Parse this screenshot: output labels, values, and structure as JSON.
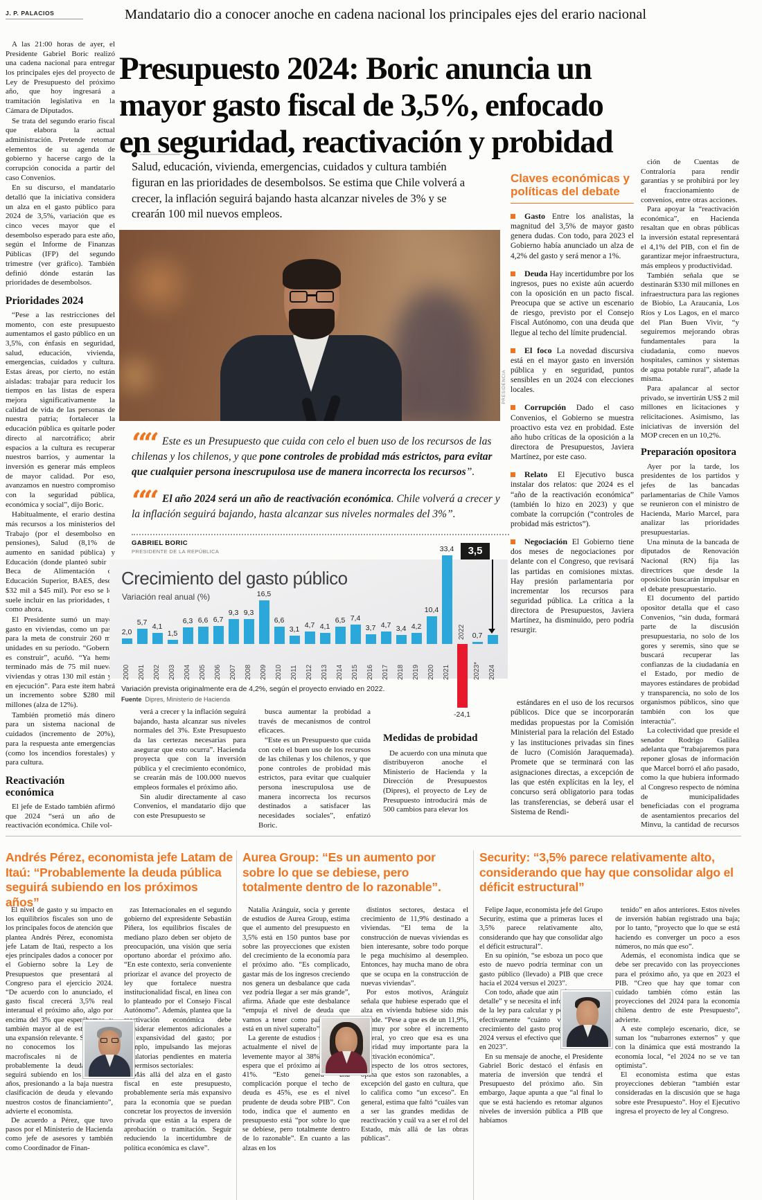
{
  "colors": {
    "accent": "#ee7420",
    "bar_blue": "#2ba7d9",
    "bar_red": "#e8182d",
    "badge_bg": "#1a1a18"
  },
  "masthead": {
    "byline": "J. P. PALACIOS"
  },
  "kicker": "Mandatario dio a conocer anoche en cadena nacional los principales ejes del erario nacional",
  "headline_lines": [
    "Presupuesto 2024: Boric anuncia un",
    "mayor gasto fiscal de 3,5%, enfocado",
    "en seguridad, reactivación y probidad"
  ],
  "deck": "Salud, educación, vivienda, emergencias, cuidados y cultura también figuran en las prioridades de desembolsos. Se estima que Chile volverá a crecer, la inflación seguirá bajando hasta alcanzar niveles de 3% y se crearán 100 mil nuevos empleos.",
  "photo": {
    "credit": "PRESIDENCIA"
  },
  "left_column": {
    "blocks": [
      {
        "p": "A las 21:00 horas de ayer, el Presidente Gabriel Boric realizó una cadena nacional para entregar los principales ejes del proyecto de Ley de Presupuesto del próximo año, que hoy ingresará a tramitación legislativa en la Cámara de Diputados."
      },
      {
        "p": "Se trata del segundo erario fiscal que elabora la actual administración. Pretende retomar elementos de su agenda de gobierno y hacerse cargo de la corrupción conocida a partir del caso Convenios."
      },
      {
        "p": "En su discurso, el mandatario detalló que la iniciativa considera un alza en el gasto público para 2024 de 3,5%, variación que es cinco veces mayor que el desembolso esperado para este año, según el Informe de Finanzas Públicas (IFP) del segundo trimestre (ver gráfico). También definió dónde estarán las prioridades de desembolsos."
      },
      {
        "h": "Prioridades 2024"
      },
      {
        "p": "“Pese a las restricciones del momento, con este presupuesto aumentamos el gasto público en un 3,5%, con énfasis en seguridad, salud, educación, vivienda, emergencias, cuidados y cultura. Estas áreas, por cierto, no están aisladas: trabajar para reducir los tiempos en las listas de espera mejora significativamente la calidad de vida de las personas de nuestra patria; fortalecer la educación pública es quitarle poder directo al narcotráfico; abrir espacios a la cultura es recuperar nuestros barrios, y aumentar la inversión es generar más empleos de mayor calidad. Por eso, avanzamos en nuestro compromiso con la seguridad pública, económica y social”, dijo Boric."
      },
      {
        "p": "Habitualmente, el erario destina más recursos a los ministerios del Trabajo (por el desembolso en pensiones), Salud (8,1% de aumento en sanidad pública) y Educación (donde planteó subir la Beca de Alimentación de Educación Superior, BAES, desde $32 mil a $45 mil). Por eso se les suele incluir en las prioridades, tal como ahora."
      },
      {
        "p": "El Presidente sumó un mayor gasto en viviendas, como un paso para la meta de construir 260 mil unidades en su período. “Gobernar es construir”, acuñó. “Ya hemos terminado más de 75 mil nuevas viviendas y otras 130 mil están ya en ejecución”. Para este ítem habrá un incremento sobre $280 mil millones (alza de 12%)."
      },
      {
        "p": "También prometió más dinero para un sistema nacional de cuidados (incremento de 20%), para la respuesta ante emergencias (como los incendios forestales) y para cultura."
      },
      {
        "h": "Reactivación económica"
      },
      {
        "p": "El jefe de Estado también afirmó que 2024 “será un año de reactivación económica. Chile vol-"
      }
    ]
  },
  "quotes": {
    "q1": {
      "pre": "Este es un Presupuesto que cuida con celo el buen uso de los recursos de las chilenas y los chilenos, y que ",
      "bold": "pone controles de probidad más estrictos, para evitar que cualquier persona inescrupulosa use de manera incorrecta los recursos",
      "post": "”."
    },
    "q2": {
      "pre": "",
      "bold": "El año 2024 será un año de reactivación económica",
      "post": ". Chile volverá a crecer y la inflación seguirá bajando, hasta alcanzar sus niveles normales del 3%”."
    }
  },
  "quote_byline": {
    "name": "GABRIEL BORIC",
    "role": "PRESIDENTE DE LA REPÚBLICA"
  },
  "chart_data": {
    "type": "bar",
    "title": "Crecimiento del gasto público",
    "subtitle": "Variación real anual (%)",
    "categories": [
      "2000",
      "2001",
      "2002",
      "2003",
      "2004",
      "2005",
      "2006",
      "2007",
      "2008",
      "2009",
      "2010",
      "2011",
      "2012",
      "2013",
      "2014",
      "2015",
      "2016",
      "2017",
      "2018",
      "2019",
      "2020",
      "2021",
      "2022",
      "2023*",
      "2024"
    ],
    "values": [
      2.0,
      5.7,
      4.1,
      1.5,
      6.3,
      6.6,
      6.7,
      9.3,
      9.3,
      16.5,
      6.6,
      3.1,
      4.7,
      4.1,
      6.5,
      7.4,
      3.7,
      4.7,
      3.4,
      4.2,
      10.4,
      33.4,
      -24.1,
      0.7,
      3.5
    ],
    "value_labels": [
      "2,0",
      "5,7",
      "4,1",
      "1,5",
      "6,3",
      "6,6",
      "6,7",
      "9,3",
      "9,3",
      "16,5",
      "6,6",
      "3,1",
      "4,7",
      "4,1",
      "6,5",
      "7,4",
      "3,7",
      "4,7",
      "3,4",
      "4,2",
      "10,4",
      "33,4",
      "-24,1",
      "0,7",
      "3,5"
    ],
    "highlight_index": 24,
    "highlight_label": "3,5",
    "negative_index": 22,
    "ylim": [
      -26,
      35
    ],
    "legend_position": "none",
    "grid": false,
    "footnote": "Variación prevista originalmente era de 4,2%, según el proyecto enviado en 2022.",
    "source_label": "Fuente",
    "source": "Dipres, Ministerio de Hacienda"
  },
  "mid_a": {
    "paragraphs": [
      "verá a crecer y la inflación seguirá bajando, hasta alcanzar sus niveles normales del 3%. Este Presupuesto da las certezas necesarias para asegurar que esto ocurra”. Hacienda proyecta que con la inversión pública y el crecimiento económico, se crearán más de 100.000 nuevos empleos formales el próximo año.",
      "Sin aludir directamente al caso Convenios, el mandatario dijo que con este Presupuesto se"
    ]
  },
  "mid_b": {
    "paragraphs": [
      "busca aumentar la probidad a través de mecanismos de control eficaces.",
      "“Este es un Presupuesto que cuida con celo el buen uso de los recursos de las chilenas y los chilenos, y que pone controles de probidad más estrictos, para evitar que cualquier persona inescrupulosa use de manera incorrecta los recursos destinados a satisfacer las necesidades sociales”, enfatizó Boric."
    ]
  },
  "medidas": {
    "heading": "Medidas de probidad",
    "paragraphs": [
      "De acuerdo con una minuta que distribuyeron anoche el Ministerio de Hacienda y la Dirección de Presupuestos (Dipres), el proyecto de Ley de Presupuesto introducirá más de 500 cambios para elevar los"
    ]
  },
  "under_rail": {
    "paragraphs": [
      "estándares en el uso de los recursos públicos. Dice que se incorporarán medidas propuestas por la Comisión Ministerial para la relación del Estado y las instituciones privadas sin fines de lucro (Comisión Jaraquemada). Promete que se terminará con las asignaciones directas, a excepción de las que estén explícitas en la ley, el concurso será obligatorio para todas las transferencias, se deberá usar el Sistema de Rendi-"
    ]
  },
  "rail": {
    "title": "Claves económicas y políticas del debate",
    "items": [
      {
        "label": "Gasto",
        "text": "Entre los analistas, la magnitud del 3,5% de mayor gasto genera dudas. Con todo, para 2023 el Gobierno había anunciado un alza de 4,2% del gasto y será menor a 1%."
      },
      {
        "label": "Deuda",
        "text": "Hay incertidumbre por los ingresos, pues no existe aún acuerdo con la oposición en un pacto fiscal. Preocupa que se active un escenario de riesgo, previsto por el Consejo Fiscal Autónomo, con una deuda que llegue al techo del límite prudencial."
      },
      {
        "label": "El foco",
        "text": "La novedad discursiva está en el mayor gasto en inversión pública y en seguridad, puntos sensibles en un 2024 con elecciones locales."
      },
      {
        "label": "Corrupción",
        "text": "Dado el caso Convenios, el Gobierno se muestra proactivo esta vez en probidad. Este año hubo críticas de la oposición a la directora de Presupuestos, Javiera Martínez, por este caso."
      },
      {
        "label": "Relato",
        "text": "El Ejecutivo busca instalar dos relatos: que 2024 es el “año de la reactivación económica” (también lo hizo en 2023) y que combate la corrupción (“controles de probidad más estrictos”)."
      },
      {
        "label": "Negociación",
        "text": "El Gobierno tiene dos meses de negociaciones por delante con el Congreso, que revisará las partidas en comisiones mixtas. Hay presión parlamentaria por incrementar los recursos para seguridad pública. La crítica a la directora de Presupuestos, Javiera Martínez, ha disminuido, pero podría resurgir."
      }
    ]
  },
  "right_column": {
    "paragraphs_top": [
      "ción de Cuentas de Contraloría para rendir garantías y se prohibirá por ley el fraccionamiento de convenios, entre otras acciones.",
      "Para apoyar la “reactivación económica”, en Hacienda resaltan que en obras públicas la inversión estatal representará el 4,1% del PIB, con el fin de garantizar mejor infraestructura, más empleos y productividad.",
      "También señala que se destinarán $330 mil millones en infraestructura para las regiones de Biobío, La Araucanía, Los Ríos y Los Lagos, en el marco del Plan Buen Vivir, “y seguiremos mejorando obras fundamentales para la ciudadanía, como nuevos hospitales, caminos y sistemas de agua potable rural”, añade la misma.",
      "Para apalancar al sector privado, se invertirán US$ 2 mil millones en licitaciones y relicitaciones. Asimismo, las iniciativas de inversión del MOP crecen en un 10,2%."
    ],
    "subhead": "Preparación opositora",
    "paragraphs_bottom": [
      "Ayer por la tarde, los presidentes de los partidos y jefes de las bancadas parlamentarias de Chile Vamos se reunieron con el ministro de Hacienda, Mario Marcel, para analizar las prioridades presupuestarias.",
      "Una minuta de la bancada de diputados de Renovación Nacional (RN) fija las directrices que desde la oposición buscarán impulsar en el debate presupuestario.",
      "El documento del partido opositor detalla que el caso Convenios, “sin duda, formará parte de la discusión presupuestaria, no solo de los gores y seremis, sino que se buscará recuperar las confianzas de la ciudadanía en el Estado, por medio de mayores estándares de probidad y transparencia, no solo de los organismos públicos, sino que también con los que interactúa”.",
      "La colectividad que preside el senador Rodrigo Galilea adelanta que “trabajaremos para reponer glosas de información que Marcel borró el año pasado, como la que hubiera informado al Congreso respecto de nómina de municipalidades beneficiadas con el programa de asentamientos precarios del Minvu, la cantidad de recursos entregados a cada una de ellas y las actividades realizadas con dichos recursos”."
    ]
  },
  "bottom": {
    "articles": [
      {
        "headline": "Andrés Pérez, economista jefe Latam de Itaú: “Probablemente la deuda pública seguirá subiendo en los próximos años”",
        "col1": [
          "El nivel de gasto y su impacto en los equilibrios fiscales son uno de los principales focos de atención que plantea Andrés Pérez, economista jefe Latam de Itaú, respecto a los ejes principales dados a conocer por el Gobierno sobre la Ley de Presupuestos que presentará al Congreso para el ejercicio 2024. “De acuerdo con lo anunciado, el gasto fiscal crecerá 3,5% real interanual el próximo año, algo por encima del 3% que esperábamos, y también mayor al de este año. Es una expansión relevante. Si bien aún no conocemos los supuestos macrofiscales ni de ingresos, probablemente la deuda pública seguirá subiendo en los próximos años, presionando a la baja nuestra clasificación de deuda y elevando nuestros costos de financiamiento”, advierte el economista.",
          "De acuerdo a Pérez, que tuvo pasos por el Ministerio de Hacienda como jefe de asesores y también como Coordinador de Finan-"
        ],
        "col2": [
          "zas Internacionales en el segundo gobierno del expresidente Sebastián Piñera, los equilibrios fiscales de mediano plazo deben ser objeto de preocupación, una visión que sería oportuno abordar el próximo año. “En este contexto, sería conveniente priorizar el avance del proyecto de ley que fortalece nuestra institucionalidad fiscal, en línea con lo planteado por el Consejo Fiscal Autónomo”. Además, plantea que la reactivación económica debe considerar elementos adicionales a la expansividad del gasto; por ejemplo, impulsando las mejoras regulatorias pendientes en materia de permisos sectoriales:",
          "“Más allá del alza en el gasto fiscal en este presupuesto, probablemente sería más expansivo para la economía que se puedan concretar los proyectos de inversión privada que están a la espera de aprobación o tramitación. Seguir reduciendo la incertidumbre de política económica es clave”."
        ]
      },
      {
        "headline": "Aurea Group: “Es un aumento por sobre lo que se debiese, pero totalmente dentro de lo razonable”.",
        "col1": [
          "Natalia Aránguiz, socia y gerente de estudios de Aurea Group, estima que el aumento del presupuesto en 3,5% está en 150 puntos base por sobre las proyecciones que existen del crecimiento de la economía para el próximo año. “Es complicado, gastar más de los ingresos creciendo nos genera un desbalance que cada vez podría llegar a ser más grande”, afirma. Añade que este desbalance “empuja el nivel de deuda que vamos a tener como país, que ya está en un nivel superalto”.",
          "La gerente de estudios señala que actualmente el nivel de deuda es levemente mayor al 38% y que se espera que el próximo año roce el 41%. “Esto genera una complicación porque el techo de deuda es 45%, ese es el nivel prudente de deuda sobre PIB”. Con todo, indica que el aumento en presupuesto está “por sobre lo que se debiese, pero totalmente dentro de lo razonable”. En cuanto a las alzas en los"
        ],
        "col2": [
          "distintos sectores, destaca el crecimiento de 11,9% destinado a viviendas. “El tema de la construcción de nuevas viviendas es bien interesante, sobre todo porque le pega muchísimo al desempleo. Entonces, hay mucha mano de obra que se ocupa en la construcción de nuevas viviendas”.",
          "Por estos motivos, Aránguiz señala que hubiese esperado que el alza en vivienda hubiese sido más grande. “Pese a que es de un 11,9%, es muy por sobre el incremento general, yo creo que esa es una prioridad muy importante para la reactivación económica”.",
          "Respecto de los otros sectores, opina que estos son razonables, a excepción del gasto en cultura, que lo califica como “un exceso”. En general, estima que faltó “cuáles van a ser las grandes medidas de reactivación y cuál va a ser el rol del Estado, más allá de las obras públicas”."
        ]
      },
      {
        "headline": "Security: “3,5% parece relativamente alto, considerando que hay que consolidar algo el déficit estructural”",
        "col1": [
          "Felipe Jaque, economista jefe del Grupo Security, estima que a primeras luces el 3,5% parece relativamente alto, considerando que hay que consolidar algo el déficit estructural”.",
          "En su opinión, “se esboza un poco que esto de nuevo podría terminar con un gasto público (llevado) a PIB que crece hacia el 2024 versus el 2023”.",
          "Con todo, añade que aún “falta bastante detalle” y se necesita el informe completo de la ley para calcular y poder comparar efectivamente “cuánto va a ser el crecimiento del gasto propuesto para el 2024 versus el efectivo que se va a gastar en 2023”.",
          "En su mensaje de anoche, el Presidente Gabriel Boric destacó el énfasis en materia de inversión que tendrá el Presupuesto del próximo año. Sin embargo, Jaque apunta a que “al final lo que se está haciendo es retomar algunos niveles de inversión pública a PIB que habíamos"
        ],
        "col2": [
          "tenido” en años anteriores. Estos niveles de inversión habían registrado una baja; por lo tanto, “proyecto que lo que se está haciendo es converger un poco a esos números, no más que eso”.",
          "Además, el economista indica que se debe ser precavido con las proyecciones para el próximo año, ya que en 2023 el PIB. “Creo que hay que tomar con cuidado también cómo están las proyecciones del 2024 para la economía chilena dentro de este Presupuesto”, advierte.",
          "A este complejo escenario, dice, se suman los “nubarrones externos” y que con la dinámica que está mostrando la economía local, “el 2024 no se ve tan optimista”.",
          "El economista estima que estas proyecciones debieran “también estar consideradas en la discusión que se haga sobre este Presupuesto”. Hoy el Ejecutivo ingresa el proyecto de ley al Congreso."
        ]
      }
    ]
  }
}
